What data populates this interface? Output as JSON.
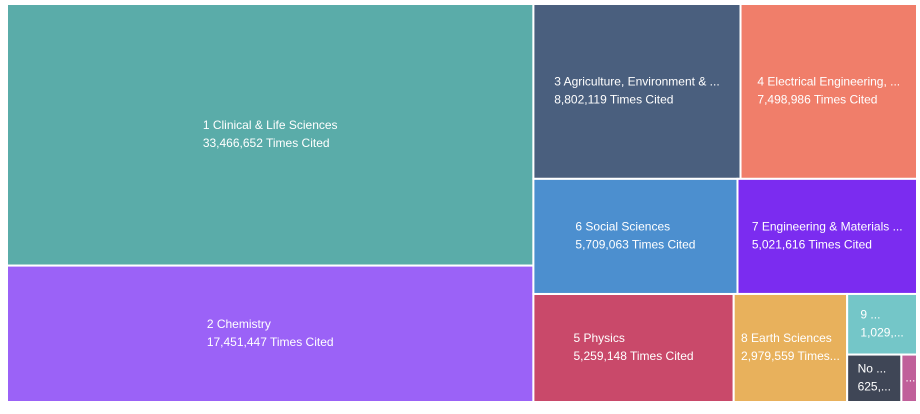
{
  "chart_data": {
    "type": "treemap",
    "categories": [
      "1 Clinical & Life Sciences",
      "2 Chemistry",
      "3 Agriculture, Environment & ...",
      "4 Electrical Engineering, ...",
      "5 Physics",
      "6 Social Sciences",
      "7 Engineering & Materials ...",
      "8 Earth Sciences",
      "9 ...",
      "No ...",
      "..."
    ],
    "values": [
      33466652,
      17451447,
      8802119,
      7498986,
      5259148,
      5709063,
      5021616,
      2979559,
      1029000,
      625000,
      180000
    ],
    "value_labels": [
      "33,466,652 Times Cited",
      "17,451,447 Times Cited",
      "8,802,119 Times Cited",
      "7,498,986 Times Cited",
      "5,259,148 Times Cited",
      "5,709,063 Times Cited",
      "5,021,616 Times Cited",
      "2,979,559 Times...",
      "1,029,...",
      "625,...",
      null
    ],
    "colors": [
      "#5aaca9",
      "#9b62f7",
      "#4a5f7e",
      "#f07e6a",
      "#c9496a",
      "#4c8fcf",
      "#7b2cf0",
      "#e8b15c",
      "#74c6c8",
      "#3f4656",
      "#c0609a"
    ]
  }
}
